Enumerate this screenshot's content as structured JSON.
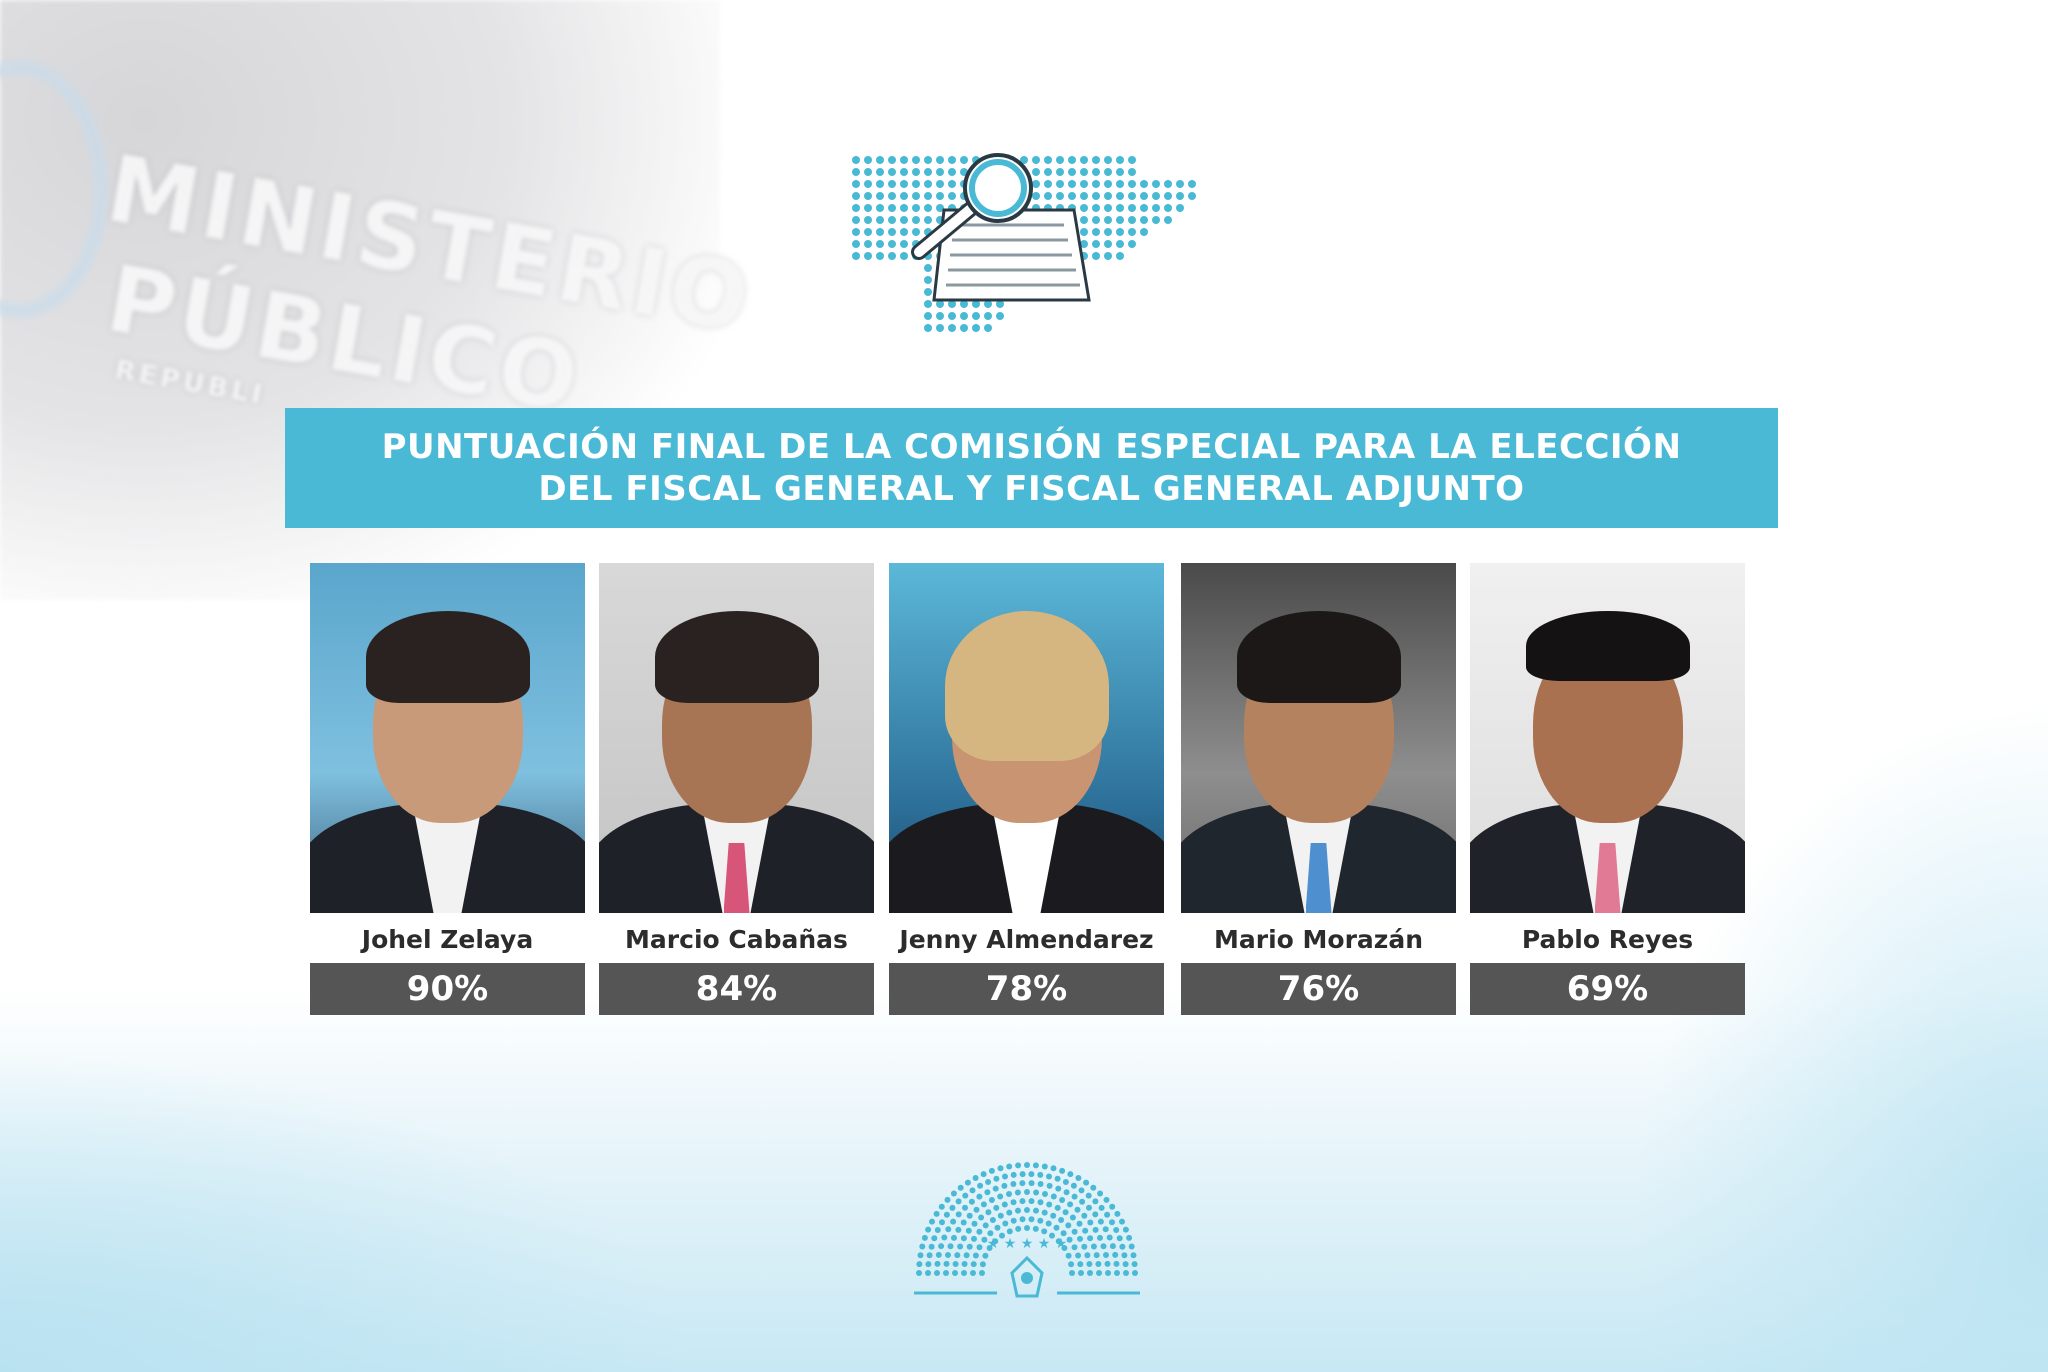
{
  "backdrop": {
    "line1": "MINISTERIO",
    "line2": "PÚBLICO",
    "line3": "REPUBLI"
  },
  "banner": {
    "line1": "PUNTUACIÓN FINAL DE LA COMISIÓN ESPECIAL PARA LA ELECCIÓN",
    "line2": "DEL FISCAL GENERAL Y FISCAL GENERAL ADJUNTO"
  },
  "candidates": [
    {
      "name": "Johel Zelaya",
      "score": "90%",
      "score_value": 90
    },
    {
      "name": "Marcio Cabañas",
      "score": "84%",
      "score_value": 84
    },
    {
      "name": "Jenny Almendarez",
      "score": "78%",
      "score_value": 78
    },
    {
      "name": "Mario Morazán",
      "score": "76%",
      "score_value": 76
    },
    {
      "name": "Pablo Reyes",
      "score": "69%",
      "score_value": 69
    }
  ],
  "colors": {
    "accent": "#4ab9d6",
    "score_bg": "#555555",
    "name_text": "#2c2c2c"
  },
  "icons": {
    "top": "map-with-document-and-magnifier-icon",
    "bottom": "congress-hemicycle-logo"
  }
}
